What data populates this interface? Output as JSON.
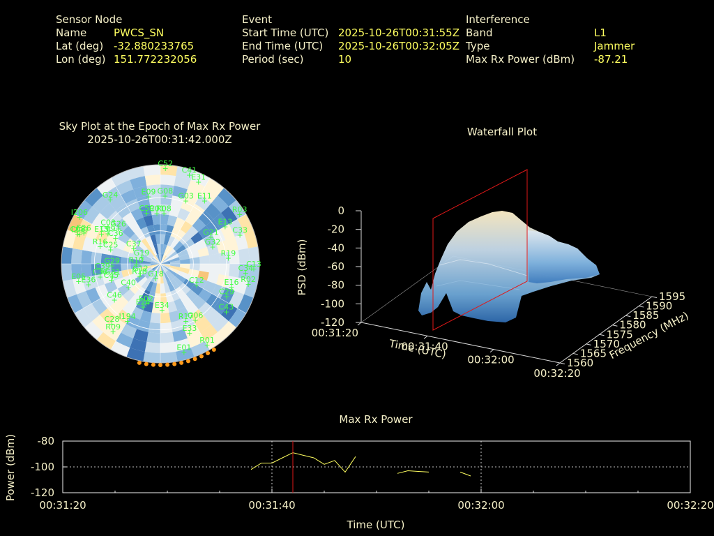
{
  "colors": {
    "background": "#000000",
    "label": "#f5f0c8",
    "value": "#ffff60",
    "satellite": "#40ff40",
    "epoch_marker": "#ff2020",
    "trace": "#ffff60",
    "low_elev_marker": "#ff9a1a"
  },
  "header": {
    "sensor": {
      "title": "Sensor Node",
      "name_label": "Name",
      "name": "PWCS_SN",
      "lat_label": "Lat (deg)",
      "lat": "-32.880233765",
      "lon_label": "Lon (deg)",
      "lon": "151.772232056"
    },
    "event": {
      "title": "Event",
      "start_label": "Start Time (UTC)",
      "start": "2025-10-26T00:31:55Z",
      "end_label": "End Time (UTC)",
      "end": "2025-10-26T00:32:05Z",
      "period_label": "Period (sec)",
      "period": "10"
    },
    "interference": {
      "title": "Interference",
      "band_label": "Band",
      "band": "L1",
      "type_label": "Type",
      "type": "Jammer",
      "power_label": "Max Rx Power (dBm)",
      "power": "-87.21"
    }
  },
  "skyplot": {
    "title": "Sky Plot at the Epoch of Max Rx Power",
    "epoch": "2025-10-26T00:31:42.000Z",
    "satellites": [
      {
        "id": "C52",
        "az": 3,
        "el": 3
      },
      {
        "id": "C41",
        "az": 18,
        "el": 5
      },
      {
        "id": "E31",
        "az": 25,
        "el": 8
      },
      {
        "id": "E11",
        "az": 35,
        "el": 20
      },
      {
        "id": "R03",
        "az": 58,
        "el": 5
      },
      {
        "id": "G03",
        "az": 22,
        "el": 28
      },
      {
        "id": "E13",
        "az": 60,
        "el": 22
      },
      {
        "id": "C33",
        "az": 70,
        "el": 13
      },
      {
        "id": "G21",
        "az": 62,
        "el": 38
      },
      {
        "id": "G32",
        "az": 72,
        "el": 40
      },
      {
        "id": "R19",
        "az": 85,
        "el": 28
      },
      {
        "id": "C34",
        "az": 96,
        "el": 12
      },
      {
        "id": "C13",
        "az": 93,
        "el": 5
      },
      {
        "id": "R02",
        "az": 103,
        "el": 8
      },
      {
        "id": "E16",
        "az": 108,
        "el": 22
      },
      {
        "id": "C29",
        "az": 116,
        "el": 23
      },
      {
        "id": "C43",
        "az": 126,
        "el": 16
      },
      {
        "id": "C12",
        "az": 120,
        "el": 52
      },
      {
        "id": "G06",
        "az": 148,
        "el": 30
      },
      {
        "id": "R17",
        "az": 156,
        "el": 33
      },
      {
        "id": "E33",
        "az": 157,
        "el": 22
      },
      {
        "id": "E01",
        "az": 165,
        "el": 7
      },
      {
        "id": "E34",
        "az": 178,
        "el": 48
      },
      {
        "id": "E02",
        "az": 200,
        "el": 52
      },
      {
        "id": "E24",
        "az": 202,
        "el": 48
      },
      {
        "id": "G18",
        "az": 197,
        "el": 76
      },
      {
        "id": "R18",
        "az": 240,
        "el": 68
      },
      {
        "id": "R10",
        "az": 268,
        "el": 68
      },
      {
        "id": "G12",
        "az": 245,
        "el": 70
      },
      {
        "id": "G19",
        "az": 288,
        "el": 72
      },
      {
        "id": "C37",
        "az": 300,
        "el": 62
      },
      {
        "id": "C46",
        "az": 232,
        "el": 37
      },
      {
        "id": "C45",
        "az": 252,
        "el": 43
      },
      {
        "id": "C40",
        "az": 234,
        "el": 54
      },
      {
        "id": "G31",
        "az": 255,
        "el": 45
      },
      {
        "id": "C30",
        "az": 258,
        "el": 34
      },
      {
        "id": "E36",
        "az": 254,
        "el": 22
      },
      {
        "id": "E05",
        "az": 258,
        "el": 14
      },
      {
        "id": "C39",
        "az": 263,
        "el": 37
      },
      {
        "id": "G29",
        "az": 268,
        "el": 46
      },
      {
        "id": "C25",
        "az": 286,
        "el": 43
      },
      {
        "id": "C08",
        "az": 290,
        "el": 10
      },
      {
        "id": "E26",
        "az": 292,
        "el": 15
      },
      {
        "id": "R16",
        "az": 286,
        "el": 33
      },
      {
        "id": "E15",
        "az": 297,
        "el": 30
      },
      {
        "id": "C09",
        "az": 300,
        "el": 35
      },
      {
        "id": "C03",
        "az": 305,
        "el": 32
      },
      {
        "id": "G26",
        "az": 310,
        "el": 40
      },
      {
        "id": "C36",
        "az": 300,
        "el": 43
      },
      {
        "id": "I209",
        "az": 290,
        "el": 12
      },
      {
        "id": "I206",
        "az": 300,
        "el": 5
      },
      {
        "id": "G24",
        "az": 322,
        "el": 16
      },
      {
        "id": "E09",
        "az": 350,
        "el": 28
      },
      {
        "id": "G08",
        "az": 4,
        "el": 28
      },
      {
        "id": "C59",
        "az": 345,
        "el": 42
      },
      {
        "id": "C01",
        "az": 356,
        "el": 44
      },
      {
        "id": "R08",
        "az": 4,
        "el": 44
      },
      {
        "id": "R09",
        "az": 215,
        "el": 15
      },
      {
        "id": "C28",
        "az": 219,
        "el": 20
      },
      {
        "id": "I194",
        "az": 210,
        "el": 30
      },
      {
        "id": "R01",
        "az": 150,
        "el": 5
      }
    ]
  },
  "waterfall": {
    "title": "Waterfall Plot",
    "x_label": "Time (UTC)",
    "y_label": "Frequency (MHz)",
    "z_label": "PSD (dBm)",
    "x_ticks": [
      "00:31:20",
      "00:31:40",
      "00:32:00",
      "00:32:20"
    ],
    "y_ticks": [
      "1560",
      "1565",
      "1570",
      "1575",
      "1580",
      "1585",
      "1590",
      "1595"
    ],
    "z_ticks": [
      "0",
      "-20",
      "-40",
      "-60",
      "-80",
      "-100",
      "-120"
    ]
  },
  "chart_data": {
    "type": "line",
    "title": "Max Rx Power",
    "xlabel": "Time (UTC)",
    "ylabel": "Power (dBm)",
    "x_ticks": [
      "00:31:20",
      "00:31:40",
      "00:32:00",
      "00:32:20"
    ],
    "y_ticks": [
      "-80",
      "-100",
      "-120"
    ],
    "xlim_sec": [
      0,
      60
    ],
    "ylim": [
      -120,
      -80
    ],
    "epoch_marker_sec": 22,
    "segments": [
      [
        [
          18,
          -102
        ],
        [
          19,
          -97
        ],
        [
          20,
          -97
        ],
        [
          21,
          -93
        ],
        [
          22,
          -89
        ],
        [
          23,
          -91
        ],
        [
          24,
          -93
        ],
        [
          25,
          -98
        ],
        [
          26,
          -95
        ],
        [
          27,
          -104
        ],
        [
          28,
          -92
        ]
      ],
      [
        [
          32,
          -105
        ],
        [
          33,
          -103
        ],
        [
          34,
          -103.5
        ],
        [
          35,
          -104
        ]
      ],
      [
        [
          38,
          -104
        ],
        [
          39,
          -107
        ]
      ]
    ]
  }
}
